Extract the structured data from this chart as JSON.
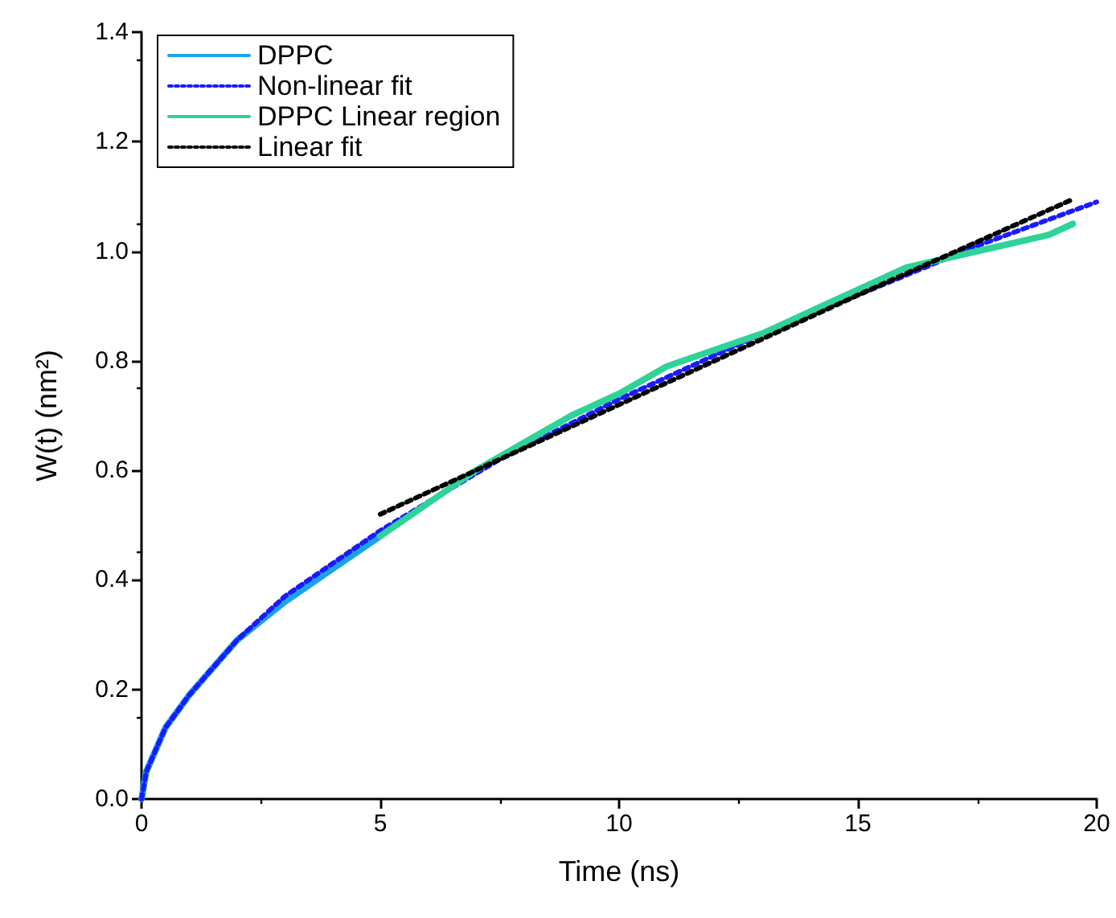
{
  "chart_data": {
    "type": "line",
    "xlabel": "Time (ns)",
    "ylabel": "W(t) (nm²)",
    "xlim": [
      0,
      20
    ],
    "xticks": [
      0,
      5,
      10,
      15,
      20
    ],
    "ylim": [
      0,
      1.4
    ],
    "yticks": [
      {
        "value": 0,
        "label": "0.0"
      },
      0.2,
      0.4,
      0.6,
      0.8,
      {
        "value": 1,
        "label": "1.0"
      },
      1.2,
      1.4
    ],
    "grid": false,
    "legend": "top left",
    "marker": "none",
    "series": [
      {
        "name": "DPPC",
        "color": "#1aa3ec",
        "line_style": "solid",
        "x": [
          0,
          0.1,
          0.5,
          1,
          2,
          3,
          4,
          5
        ],
        "values": [
          0,
          0.05,
          0.13,
          0.19,
          0.29,
          0.36,
          0.42,
          0.48
        ]
      },
      {
        "name": "Non-linear fit",
        "color": "#1a1aff",
        "line_style": "dotted",
        "x": [
          0,
          0.1,
          0.5,
          1,
          2,
          3,
          4,
          5,
          7.5,
          10,
          12.5,
          15,
          17.5,
          20
        ],
        "values": [
          0,
          0.05,
          0.13,
          0.19,
          0.29,
          0.37,
          0.43,
          0.49,
          0.62,
          0.73,
          0.83,
          0.92,
          1.01,
          1.09
        ]
      },
      {
        "name": "DPPC Linear region",
        "color": "#2ed397",
        "line_style": "solid",
        "x": [
          5,
          6,
          7,
          8,
          9,
          10,
          11,
          12,
          13,
          14,
          15,
          16,
          17,
          18,
          19,
          19.5
        ],
        "values": [
          0.48,
          0.54,
          0.6,
          0.65,
          0.7,
          0.74,
          0.79,
          0.82,
          0.85,
          0.89,
          0.93,
          0.97,
          0.99,
          1.01,
          1.03,
          1.05
        ]
      },
      {
        "name": "Linear fit",
        "color": "#000000",
        "line_style": "dotted",
        "x": [
          5,
          10,
          15,
          19.5
        ],
        "values": [
          0.52,
          0.72,
          0.92,
          1.095
        ]
      }
    ]
  }
}
